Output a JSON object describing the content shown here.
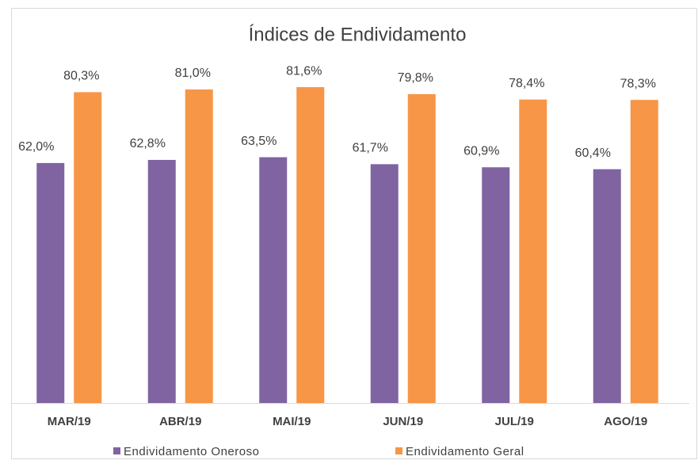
{
  "chart_data": {
    "type": "bar",
    "title": "Índices de Endividamento",
    "categories": [
      "MAR/19",
      "ABR/19",
      "MAI/19",
      "JUN/19",
      "JUL/19",
      "AGO/19"
    ],
    "series": [
      {
        "name": "Endividamento Oneroso",
        "color": "#8064a2",
        "values": [
          62.0,
          62.8,
          63.5,
          61.7,
          60.9,
          60.4
        ],
        "value_labels": [
          "62,0%",
          "62,8%",
          "63,5%",
          "61,7%",
          "60,9%",
          "60,4%"
        ]
      },
      {
        "name": "Endividamento Geral",
        "color": "#f79646",
        "values": [
          80.3,
          81.0,
          81.6,
          79.8,
          78.4,
          78.3
        ],
        "value_labels": [
          "80,3%",
          "81,0%",
          "81,6%",
          "79,8%",
          "78,4%",
          "78,3%"
        ]
      }
    ],
    "ylim": [
      0,
      90
    ],
    "legend": "bottom"
  }
}
